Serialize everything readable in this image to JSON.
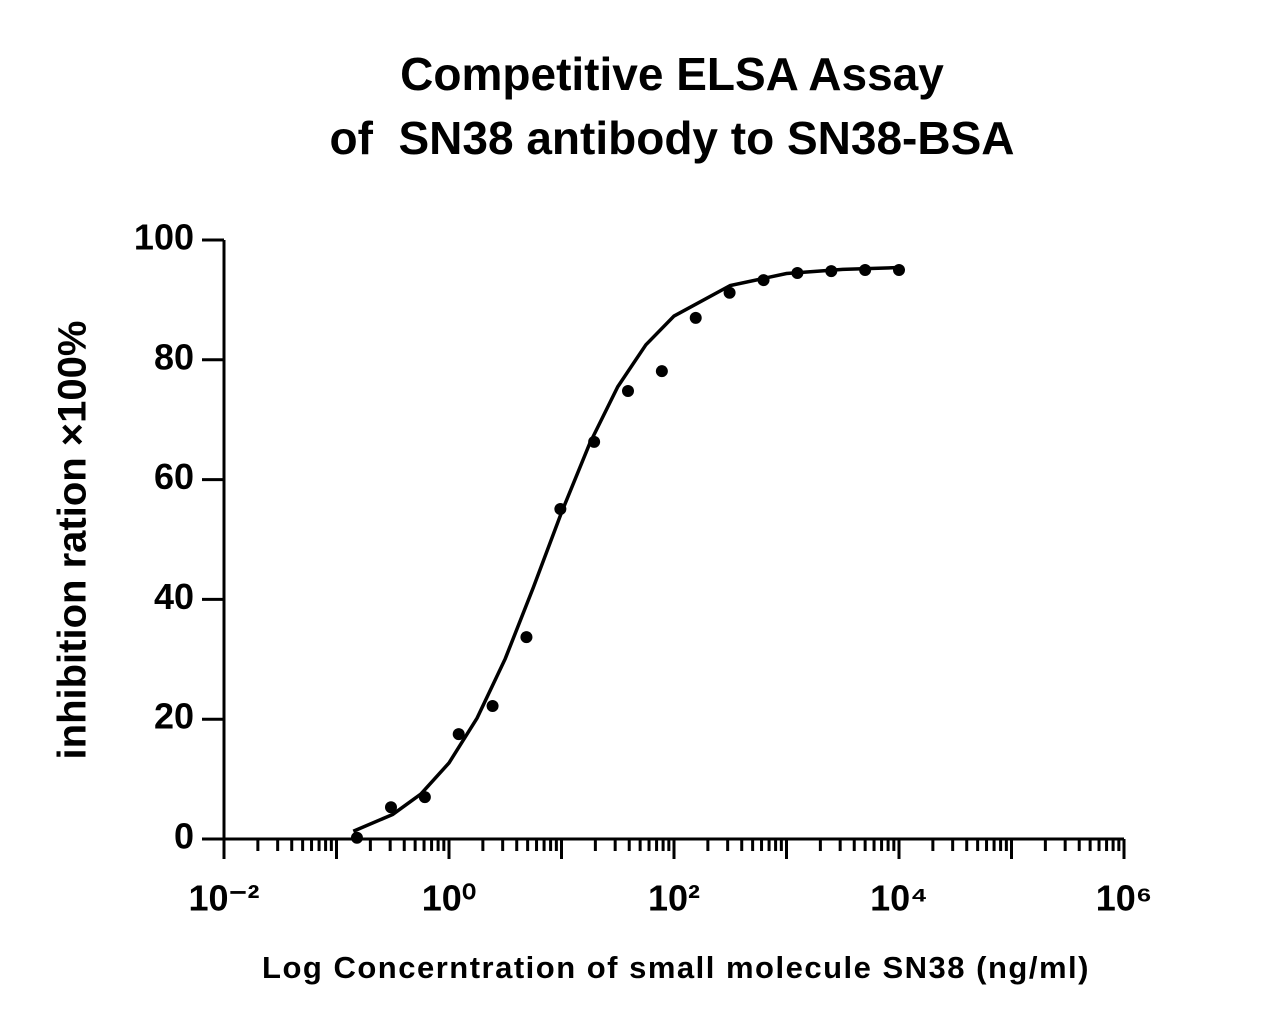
{
  "chart_data": {
    "type": "scatter",
    "title": [
      "Competitive ELSA Assay",
      "of  SN38 antibody to SN38-BSA"
    ],
    "xlabel": "Log Concerntration of small molecule SN38 (ng/ml)",
    "ylabel": "inhibition ration ×100%",
    "xscale": "log",
    "x": [
      0.152,
      0.305,
      0.61,
      1.22,
      2.44,
      4.88,
      9.77,
      19.5,
      39,
      78,
      156,
      312,
      625,
      1250,
      2500,
      5000,
      10000
    ],
    "values": [
      0.2,
      5.3,
      7.0,
      17.5,
      22.2,
      33.7,
      55.1,
      66.3,
      74.8,
      78.1,
      87.0,
      91.2,
      93.3,
      94.5,
      94.8,
      95.0,
      95.0
    ],
    "color": "#000000",
    "curve": {
      "x": [
        0.141,
        0.316,
        0.562,
        1,
        1.778,
        3.162,
        5.623,
        10,
        17.78,
        31.62,
        56.23,
        100,
        316.2,
        1000,
        3162,
        10000
      ],
      "values": [
        1.3,
        4.1,
        7.5,
        12.7,
        20.2,
        30.1,
        42.0,
        54.5,
        66.0,
        75.5,
        82.5,
        87.3,
        92.4,
        94.4,
        95.1,
        95.4
      ]
    },
    "xlim": [
      0.01,
      1000000
    ],
    "xticks": [
      {
        "value": 0.01,
        "label": "10⁻²"
      },
      {
        "value": 1,
        "label": "10⁰"
      },
      {
        "value": 100,
        "label": "10²"
      },
      {
        "value": 10000,
        "label": "10⁴"
      },
      {
        "value": 1000000,
        "label": "10⁶"
      }
    ],
    "ylim": [
      0,
      100
    ],
    "yticks": [
      0,
      20,
      40,
      60,
      80,
      100
    ],
    "minor_ticks": true,
    "grid": false
  }
}
